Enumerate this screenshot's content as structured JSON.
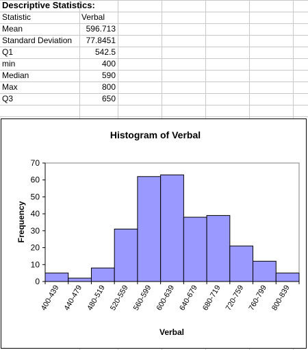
{
  "stats": {
    "title": "Descriptive Statistics:",
    "header": {
      "label": "Statistic",
      "value": "Verbal"
    },
    "rows": [
      {
        "label": "Mean",
        "value": "596.713"
      },
      {
        "label": "Standard Deviation",
        "value": "77.8451"
      },
      {
        "label": "Q1",
        "value": "542.5"
      },
      {
        "label": "min",
        "value": "400"
      },
      {
        "label": "Median",
        "value": "590"
      },
      {
        "label": "Max",
        "value": "800"
      },
      {
        "label": "Q3",
        "value": "650"
      }
    ]
  },
  "chart_data": {
    "type": "bar",
    "title": "Histogram of Verbal",
    "xlabel": "Verbal",
    "ylabel": "Frequency",
    "categories": [
      "400-439",
      "440-479",
      "480-519",
      "520-559",
      "560-599",
      "600-639",
      "640-679",
      "680-719",
      "720-759",
      "760-799",
      "800-839"
    ],
    "values": [
      5,
      2,
      8,
      31,
      62,
      63,
      38,
      39,
      21,
      12,
      5
    ],
    "ylim": [
      0,
      70
    ],
    "yticks": [
      0,
      10,
      20,
      30,
      40,
      50,
      60,
      70
    ],
    "bar_color": "#9999ff",
    "grid": false,
    "legend": "none"
  }
}
